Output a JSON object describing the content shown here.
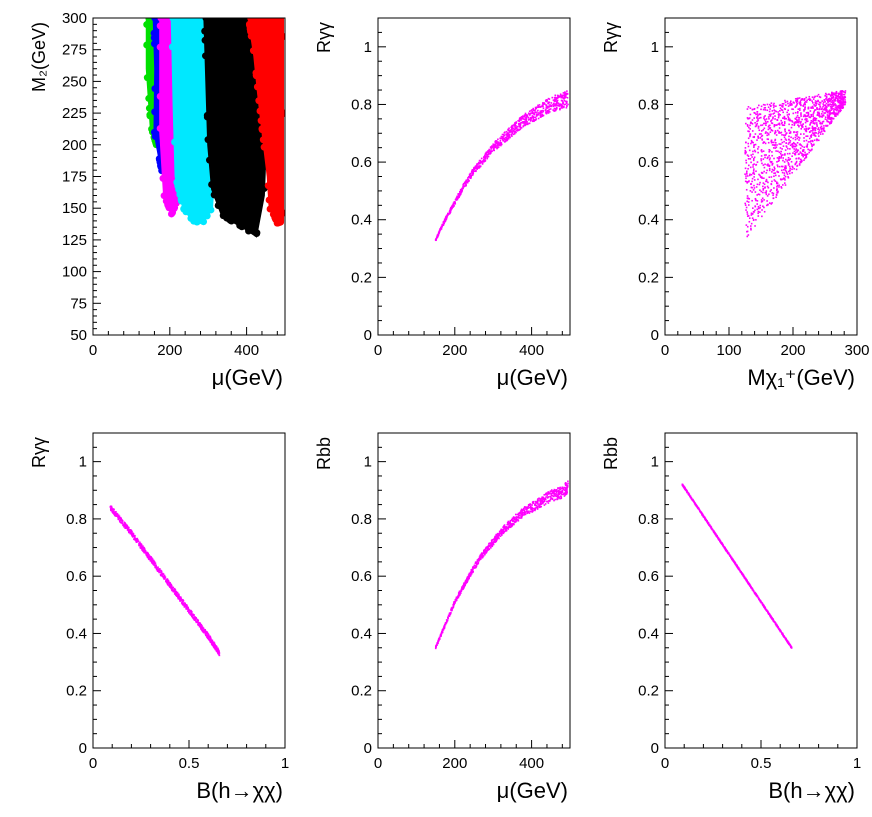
{
  "chart_data": [
    {
      "type": "scatter",
      "xlabel": "μ(GeV)",
      "ylabel": "M₂(GeV)",
      "xlim": [
        0,
        500
      ],
      "ylim": [
        50,
        300
      ],
      "xticks": [
        0,
        200,
        400
      ],
      "yticks": [
        50,
        75,
        100,
        125,
        150,
        175,
        200,
        225,
        250,
        275,
        300
      ],
      "grid": false,
      "band_fill": [
        {
          "color": "#00e000",
          "x": [
            140,
            150,
            160,
            170,
            172,
            168,
            165,
            150,
            140
          ],
          "y": [
            300,
            300,
            300,
            300,
            260,
            230,
            200,
            215,
            260
          ]
        },
        {
          "color": "#0000ff",
          "x": [
            158,
            170,
            185,
            195,
            200,
            190,
            180,
            172,
            160,
            162
          ],
          "y": [
            300,
            300,
            300,
            300,
            240,
            200,
            178,
            190,
            210,
            260
          ]
        },
        {
          "color": "#ff00ff",
          "x": [
            175,
            190,
            210,
            230,
            245,
            240,
            225,
            205,
            185,
            175
          ],
          "y": [
            300,
            300,
            300,
            300,
            250,
            200,
            160,
            145,
            160,
            210
          ]
        },
        {
          "color": "#00e8ff",
          "x": [
            205,
            225,
            255,
            285,
            310,
            320,
            310,
            285,
            260,
            235,
            215,
            210
          ],
          "y": [
            300,
            300,
            300,
            300,
            270,
            200,
            150,
            138,
            140,
            150,
            175,
            230
          ]
        },
        {
          "color": "#000000",
          "x": [
            290,
            320,
            360,
            390,
            420,
            445,
            450,
            445,
            425,
            390,
            360,
            335,
            310,
            300,
            295
          ],
          "y": [
            300,
            300,
            300,
            300,
            300,
            260,
            200,
            160,
            128,
            135,
            140,
            145,
            165,
            200,
            250
          ]
        },
        {
          "color": "#ff0000",
          "x": [
            405,
            430,
            455,
            480,
            495,
            495,
            480,
            470,
            460,
            455,
            445,
            430,
            420,
            410
          ],
          "y": [
            300,
            300,
            300,
            300,
            300,
            140,
            138,
            145,
            150,
            175,
            200,
            240,
            270,
            290
          ]
        }
      ]
    },
    {
      "type": "scatter",
      "xlabel": "μ(GeV)",
      "ylabel": "Rγγ",
      "xlim": [
        0,
        500
      ],
      "ylim": [
        0,
        1.1
      ],
      "xticks": [
        0,
        200,
        400
      ],
      "yticks": [
        0,
        0.2,
        0.4,
        0.6,
        0.8,
        1
      ],
      "color": "#ff00ff",
      "series": [
        {
          "x": [
            150,
            175,
            200,
            225,
            250,
            275,
            300,
            325,
            350,
            375,
            400,
            425,
            450,
            475,
            495
          ],
          "y": [
            0.33,
            0.4,
            0.46,
            0.52,
            0.57,
            0.61,
            0.65,
            0.68,
            0.71,
            0.74,
            0.76,
            0.78,
            0.8,
            0.81,
            0.82
          ]
        }
      ],
      "spread": [
        0.008,
        0.06
      ]
    },
    {
      "type": "scatter",
      "xlabel": "Mχ₁⁺(GeV)",
      "ylabel": "Rγγ",
      "xlim": [
        0,
        300
      ],
      "ylim": [
        0,
        1.1
      ],
      "xticks": [
        0,
        100,
        200,
        300
      ],
      "yticks": [
        0,
        0.2,
        0.4,
        0.6,
        0.8,
        1
      ],
      "color": "#ff00ff",
      "region": {
        "x": [
          125,
          128,
          280,
          282
        ],
        "y": [
          0.79,
          0.33,
          0.8,
          0.85
        ]
      }
    },
    {
      "type": "scatter",
      "xlabel": "B(h→χχ)",
      "ylabel": "Rγγ",
      "xlim": [
        0,
        1
      ],
      "ylim": [
        0,
        1.1
      ],
      "xticks": [
        0,
        0.5,
        1
      ],
      "yticks": [
        0,
        0.2,
        0.4,
        0.6,
        0.8,
        1
      ],
      "color": "#ff00ff",
      "series": [
        {
          "x": [
            0.09,
            0.2,
            0.3,
            0.4,
            0.5,
            0.6,
            0.66
          ],
          "y": [
            0.84,
            0.75,
            0.66,
            0.57,
            0.48,
            0.39,
            0.33
          ]
        }
      ],
      "spread": [
        0.018,
        0.018
      ]
    },
    {
      "type": "scatter",
      "xlabel": "μ(GeV)",
      "ylabel": "Rbb",
      "xlim": [
        0,
        500
      ],
      "ylim": [
        0,
        1.1
      ],
      "xticks": [
        0,
        200,
        400
      ],
      "yticks": [
        0,
        0.2,
        0.4,
        0.6,
        0.8,
        1
      ],
      "color": "#ff00ff",
      "series": [
        {
          "x": [
            150,
            175,
            200,
            225,
            250,
            275,
            300,
            325,
            350,
            375,
            400,
            425,
            450,
            475,
            495
          ],
          "y": [
            0.35,
            0.43,
            0.51,
            0.57,
            0.63,
            0.68,
            0.72,
            0.76,
            0.79,
            0.82,
            0.84,
            0.86,
            0.88,
            0.89,
            0.91
          ]
        }
      ],
      "spread": [
        0.008,
        0.045
      ]
    },
    {
      "type": "scatter",
      "xlabel": "B(h→χχ)",
      "ylabel": "Rbb",
      "xlim": [
        0,
        1
      ],
      "ylim": [
        0,
        1.1
      ],
      "xticks": [
        0,
        0.5,
        1
      ],
      "yticks": [
        0,
        0.2,
        0.4,
        0.6,
        0.8,
        1
      ],
      "color": "#ff00ff",
      "series": [
        {
          "x": [
            0.09,
            0.66
          ],
          "y": [
            0.92,
            0.35
          ]
        }
      ],
      "spread": [
        0.004,
        0.004
      ]
    }
  ]
}
